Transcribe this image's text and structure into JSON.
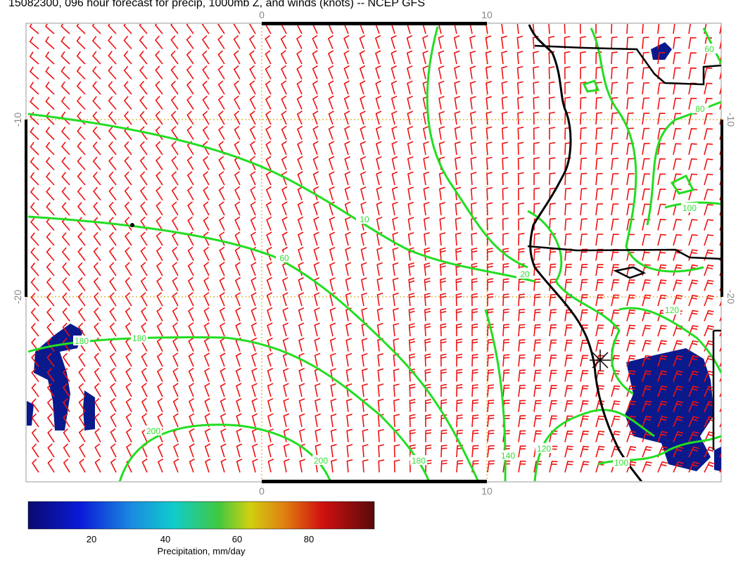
{
  "title": "15082300, 096 hour forecast for precip, 1000mb Z, and winds (knots) -- NCEP GFS",
  "map": {
    "top_ticks": [
      "0",
      "10"
    ],
    "bottom_ticks": [
      "0",
      "10"
    ],
    "left_ticks": [
      "-10",
      "-20"
    ],
    "right_ticks": [
      "-10",
      "-20"
    ],
    "contour_labels": [
      "10",
      "60",
      "180",
      "180",
      "200",
      "200",
      "180",
      "140",
      "120",
      "100",
      "20",
      "80",
      "100",
      "120",
      "60"
    ]
  },
  "colorbar": {
    "ticks": [
      "20",
      "40",
      "60",
      "80"
    ],
    "label": "Precipitation, mm/day"
  }
}
